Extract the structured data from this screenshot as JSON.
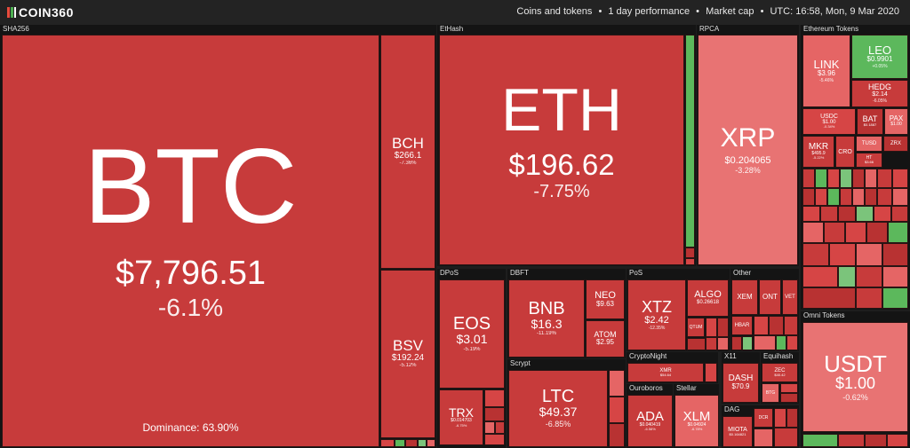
{
  "header": {
    "logo": "COIN360",
    "view": "Coins and tokens",
    "period": "1 day performance",
    "metric": "Market cap",
    "time": "UTC: 16:58, Mon, 9 Mar 2020",
    "sep": "•"
  },
  "groups": {
    "sha256": "SHA256",
    "ethash": "EtHash",
    "rpca": "RPCA",
    "eth_tokens": "Ethereum Tokens",
    "dpos": "DPoS",
    "dbft": "DBFT",
    "pos": "PoS",
    "other": "Other",
    "scrypt": "Scrypt",
    "cryptonight": "CryptoNight",
    "x11": "X11",
    "equihash": "Equihash",
    "ouroboros": "Ouroboros",
    "stellar": "Stellar",
    "dag": "DAG",
    "omni": "Omni Tokens"
  },
  "coins": {
    "btc": {
      "symbol": "BTC",
      "price": "$7,796.51",
      "change": "-6.1%",
      "dominance": "Dominance: 63.90%"
    },
    "bch": {
      "symbol": "BCH",
      "price": "$266.1",
      "change": "-7.36%"
    },
    "bsv": {
      "symbol": "BSV",
      "price": "$192.24",
      "change": "-5.12%"
    },
    "eth": {
      "symbol": "ETH",
      "price": "$196.62",
      "change": "-7.75%"
    },
    "xrp": {
      "symbol": "XRP",
      "price": "$0.204065",
      "change": "-3.28%"
    },
    "link": {
      "symbol": "LINK",
      "price": "$3.96",
      "change": "-5.46%"
    },
    "leo": {
      "symbol": "LEO",
      "price": "$0.9901",
      "change": "+0.05%"
    },
    "hedg": {
      "symbol": "HEDG",
      "price": "$2.14",
      "change": "-6.05%"
    },
    "usdc": {
      "symbol": "USDC",
      "price": "$1.00",
      "change": "-0.34%"
    },
    "bat": {
      "symbol": "BAT",
      "price": "$0.1887",
      "change": ""
    },
    "pax": {
      "symbol": "PAX",
      "price": "$1.00",
      "change": ""
    },
    "mkr": {
      "symbol": "MKR",
      "price": "$495.9",
      "change": "-5.22%"
    },
    "cro": {
      "symbol": "CRO",
      "price": "",
      "change": ""
    },
    "tusd": {
      "symbol": "TUSD",
      "price": "",
      "change": ""
    },
    "zrx": {
      "symbol": "ZRX",
      "price": "",
      "change": ""
    },
    "ht": {
      "symbol": "HT",
      "price": "$3.66",
      "change": ""
    },
    "eos": {
      "symbol": "EOS",
      "price": "$3.01",
      "change": "-5.19%"
    },
    "trx": {
      "symbol": "TRX",
      "price": "$0.014703",
      "change": "-6.75%"
    },
    "bnb": {
      "symbol": "BNB",
      "price": "$16.3",
      "change": "-11.19%"
    },
    "neo": {
      "symbol": "NEO",
      "price": "$9.63",
      "change": ""
    },
    "atom": {
      "symbol": "ATOM",
      "price": "$2.95",
      "change": ""
    },
    "xtz": {
      "symbol": "XTZ",
      "price": "$2.42",
      "change": "-12.35%"
    },
    "algo": {
      "symbol": "ALGO",
      "price": "$0.26618",
      "change": ""
    },
    "qtum": {
      "symbol": "QTUM",
      "price": "",
      "change": ""
    },
    "xem": {
      "symbol": "XEM",
      "price": "",
      "change": ""
    },
    "ont": {
      "symbol": "ONT",
      "price": "",
      "change": ""
    },
    "vet": {
      "symbol": "VET",
      "price": "",
      "change": ""
    },
    "hbar": {
      "symbol": "HBAR",
      "price": "",
      "change": ""
    },
    "ltc": {
      "symbol": "LTC",
      "price": "$49.37",
      "change": "-6.85%"
    },
    "xmr": {
      "symbol": "XMR",
      "price": "$54.64",
      "change": ""
    },
    "dash": {
      "symbol": "DASH",
      "price": "$70.9",
      "change": ""
    },
    "zec": {
      "symbol": "ZEC",
      "price": "$40.42",
      "change": ""
    },
    "btg": {
      "symbol": "BTG",
      "price": "",
      "change": ""
    },
    "ada": {
      "symbol": "ADA",
      "price": "$0.040419",
      "change": "-6.58%"
    },
    "xlm": {
      "symbol": "XLM",
      "price": "$0.04924",
      "change": "-6.78%"
    },
    "miota": {
      "symbol": "MIOTA",
      "price": "$0.164821",
      "change": ""
    },
    "dcr": {
      "symbol": "DCR",
      "price": "",
      "change": ""
    },
    "usdt": {
      "symbol": "USDT",
      "price": "$1.00",
      "change": "-0.62%"
    }
  },
  "colors": {
    "strong_red": "#b83232",
    "red": "#c73b3b",
    "light_red": "#e56565",
    "green": "#5cb85c",
    "bg": "#1e1e1e"
  }
}
